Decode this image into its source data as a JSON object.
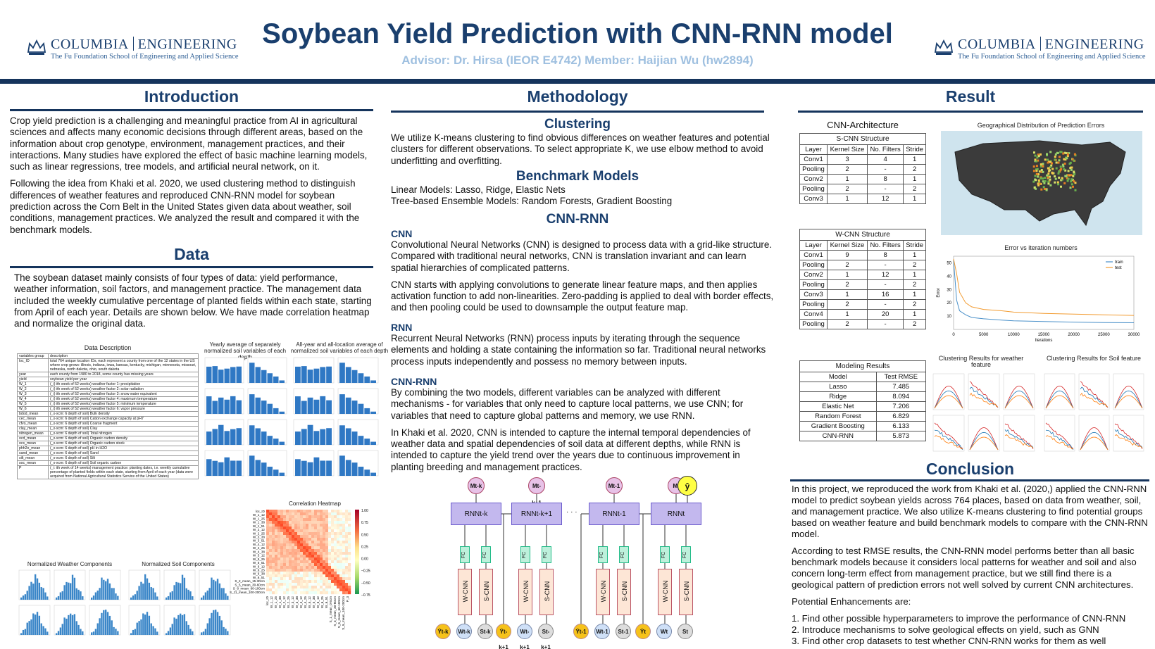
{
  "header": {
    "logo_left": {
      "name1": "COLUMBIA",
      "name2": "ENGINEERING",
      "sub": "The Fu Foundation School of Engineering and Applied Science"
    },
    "logo_right": {
      "name1": "COLUMBIA",
      "name2": "ENGINEERING",
      "sub": "The Fu Foundation School of Engineering and Applied Science"
    },
    "title": "Soybean Yield Prediction with CNN-RNN model",
    "subtitle": "Advisor: Dr. Hirsa (IEOR E4742)  Member: Haijian Wu (hw2894)"
  },
  "introduction": {
    "heading": "Introduction",
    "p1": "Crop yield prediction is a challenging and meaningful practice from AI in agricultural sciences and affects many economic decisions through different areas, based on the information about crop genotype, environment, management practices, and their interactions. Many studies have explored the effect of basic machine learning models, such as linear regressions, tree models, and artificial neural network, on it.",
    "p2": "Following the idea from Khaki et al. 2020, we used clustering method to distinguish differences of weather features and reproduced CNN-RNN model for soybean prediction across the Corn Belt in the United States given data about weather, soil conditions, management practices. We analyzed the result and compared it with the benchmark models."
  },
  "data": {
    "heading": "Data",
    "p1": "The soybean dataset mainly consists of four types of data: yield performance, weather information, soil factors, and management practice. The management data included the weekly cumulative percentage of planted fields within each state, starting from April of each year. Details are shown below. We have made correlation heatmap and normalize the original data.",
    "desc_title": "Data Description",
    "desc_header": [
      "variables group",
      "description"
    ],
    "desc_rows": [
      [
        "loc_ID",
        "total 764 unique location IDs, each represent a county from one of the 12 states in the US where crop grows: illinois, indiana, iowa, kansas, kentucky, michigan, minnesota, missouri, nebraska, north dakota, ohio, south dakota"
      ],
      [
        "year",
        "each county from 1980 to 2018, some county has missing years"
      ],
      [
        "yield",
        "soybean yield per year"
      ],
      [
        "W_1",
        "(_i) ith week of 52 weeks) weather factor 1: precipitation"
      ],
      [
        "W_2",
        "(_i) ith week of 52 weeks) weather factor 2: solar radiation"
      ],
      [
        "W_3",
        "(_i) ith week of 52 weeks) weather factor 3: snow water equivalent"
      ],
      [
        "W_4",
        "(_i) ith week of 52 weeks) weather factor 4: maximum temperature"
      ],
      [
        "W_5",
        "(_i) ith week of 52 weeks) weather factor 5: minimum temperature"
      ],
      [
        "W_6",
        "(_i) ith week of 52 weeks) weather factor 6: vapor pressure"
      ],
      [
        "bdod_mean",
        "(_x-xcm: 6 depth of soil) Bulk density"
      ],
      [
        "cec_mean",
        "(_x-xcm: 6 depth of soil) Cation exchange capacity at pH7"
      ],
      [
        "cfvo_mean",
        "(_x-xcm: 6 depth of soil) Coarse fragment"
      ],
      [
        "clay_mean",
        "(_x-xcm: 6 depth of soil) Clay"
      ],
      [
        "nitrogen_mean",
        "(_x-xcm: 6 depth of soil) Total nitrogen"
      ],
      [
        "ocd_mean",
        "(_x-xcm: 6 depth of soil) Organic carbon density"
      ],
      [
        "ocs_mean",
        "(_x-xcm: 6 depth of soil) Organic carbon stock"
      ],
      [
        "phh2o_mean",
        "(_x-xcm: 6 depth of soil) pH in H2O"
      ],
      [
        "sand_mean",
        "(_x-xcm: 6 depth of soil) Sand"
      ],
      [
        "silt_mean",
        "(_x-xcm: 6 depth of soil) Silt"
      ],
      [
        "soc_mean",
        "(_x-xcm: 6 depth of soil) Soil organic carbon"
      ],
      [
        "P",
        "(_i: ith week of 14 weeks) management practice: planting dates, i.e. weekly cumulative percentage of planted fields within each state, starting from April of each year (data were acquired from National Agricultural Statistics Service of the United States)"
      ]
    ],
    "fig_soil_depth": "Yearly average of separately normalized soil variables of each depth",
    "fig_all_loc": "All-year and all-location average of normalized soil variables of each depth",
    "fig_weather": "Normalized Weather Components",
    "fig_soil": "Normalized Soil Components",
    "fig_heatmap": "Correlation Heatmap",
    "heatmap_ylabels": [
      "loc_ID",
      "W_1_12",
      "W_1_25",
      "W_1_38",
      "W_1_51",
      "W_2_12",
      "W_2_25",
      "W_3_38",
      "W_3_51",
      "W_4_12",
      "W_4_25",
      "W_4_38",
      "W_5_12",
      "W_5_25",
      "W_5_51",
      "W_6_12",
      "W_6_25",
      "W_6_38",
      "W_6_51",
      "S_2_mean_15-30cm",
      "S_5_mean_30-60cm",
      "S_8_mean_60-100cm",
      "S_11_mean_100-200cm"
    ],
    "heatmap_xlabels": [
      "loc_ID",
      "W_1_12",
      "W_1_25",
      "W_1_38",
      "W_2_12",
      "W_2_25",
      "W_3_12",
      "W_3_38",
      "W_4_12",
      "W_4_25",
      "W_5_12",
      "W_5_38",
      "W_6_12",
      "W_6_25",
      "W_6_51",
      "S_1_mean_0-5cm",
      "S_3_mean_30-60cm",
      "S_6_mean_60-100cm",
      "S_9_mean_100-200cm",
      "P_3"
    ],
    "heatmap_ticks": [
      "1.00",
      "0.75",
      "0.50",
      "0.25",
      "0.00",
      "−0.25",
      "−0.50",
      "−0.75"
    ]
  },
  "methodology": {
    "heading": "Methodology",
    "clustering_h": "Clustering",
    "clustering_p": "We utilize K-means clustering to find obvious differences on weather features and potential clusters for different observations. To select appropriate K, we use elbow method to avoid underfitting and overfitting.",
    "bench_h": "Benchmark Models",
    "bench_p1": "Linear Models: Lasso, Ridge, Elastic Nets",
    "bench_p2": "Tree-based Ensemble Models: Random Forests, Gradient Boosting",
    "cnnrnn_h": "CNN-RNN",
    "cnn_h": "CNN",
    "cnn_p1": "Convolutional Neural Networks (CNN) is designed to process data with a grid-like structure. Compared with traditional neural networks, CNN is translation invariant and can learn spatial hierarchies of complicated patterns.",
    "cnn_p2": "CNN starts with applying convolutions to generate linear feature maps, and then applies activation function to add non-linearities. Zero-padding is applied to deal with border effects, and then pooling could be used to downsample the output feature map.",
    "rnn_h": "RNN",
    "rnn_p": "Recurrent Neural Networks (RNN) process inputs by iterating through the sequence elements and holding a state containing the information so far. Traditional neural networks process inputs independently and possess no memory between inputs.",
    "cnnrnn_sub_h": "CNN-RNN",
    "cnnrnn_p1": "By combining the two models, different variables can be analyzed with different mechanisms - for variables that only need to capture local patterns, we use CNN; for variables that need to capture global patterns and memory, we use RNN.",
    "cnnrnn_p2": "In Khaki et al. 2020, CNN is intended to capture the internal temporal dependencies of weather data and spatial dependencies of soil data at different depths, while RNN is intended to capture the yield trend over the years due to continuous improvement in planting breeding and management practices.",
    "diagram": {
      "blocks": [
        {
          "m": "Mt-k",
          "rnn": "RNNt-k",
          "y": "Ȳt-k",
          "w": "Wt-k",
          "s": "St-k"
        },
        {
          "m": "Mt-k+1",
          "rnn": "RNNt-k+1",
          "y": "Ȳt-k+1",
          "w": "Wt-k+1",
          "s": "St-k+1"
        },
        {
          "m": "Mt-1",
          "rnn": "RNNt-1",
          "y": "Ȳt-1",
          "w": "Wt-1",
          "s": "St-1"
        },
        {
          "m": "Mt",
          "rnn": "RNNt",
          "y": "Ȳt",
          "w": "Wt",
          "s": "St"
        }
      ],
      "wcnn": "W-CNN",
      "scnn": "S-CNN",
      "fc": "FC",
      "dots": "· · ·",
      "output": "ŷ"
    }
  },
  "result": {
    "heading": "Result",
    "cnn_arch_title": "CNN-Architecture",
    "scnn": {
      "caption": "S-CNN Structure",
      "header": [
        "Layer",
        "Kernel Size",
        "No. Filters",
        "Stride"
      ],
      "rows": [
        [
          "Conv1",
          "3",
          "4",
          "1"
        ],
        [
          "Pooling",
          "2",
          "-",
          "2"
        ],
        [
          "Conv2",
          "1",
          "8",
          "1"
        ],
        [
          "Pooling",
          "2",
          "-",
          "2"
        ],
        [
          "Conv3",
          "1",
          "12",
          "1"
        ]
      ]
    },
    "wcnn": {
      "caption": "W-CNN Structure",
      "header": [
        "Layer",
        "Kernel Size",
        "No. Filters",
        "Stride"
      ],
      "rows": [
        [
          "Conv1",
          "9",
          "8",
          "1"
        ],
        [
          "Pooling",
          "2",
          "-",
          "2"
        ],
        [
          "Conv2",
          "1",
          "12",
          "1"
        ],
        [
          "Pooling",
          "2",
          "-",
          "2"
        ],
        [
          "Conv3",
          "1",
          "16",
          "1"
        ],
        [
          "Pooling",
          "2",
          "-",
          "2"
        ],
        [
          "Conv4",
          "1",
          "20",
          "1"
        ],
        [
          "Pooling",
          "2",
          "-",
          "2"
        ]
      ]
    },
    "modeling": {
      "caption": "Modeling Results",
      "header": [
        "Model",
        "Test RMSE"
      ],
      "rows": [
        [
          "Lasso",
          "7.485"
        ],
        [
          "Ridge",
          "8.094"
        ],
        [
          "Elastic Net",
          "7.206"
        ],
        [
          "Random Forest",
          "6.829"
        ],
        [
          "Gradient Boosting",
          "6.133"
        ],
        [
          "CNN-RNN",
          "5.873"
        ]
      ]
    },
    "map_title": "Geographical Distribution of Prediction Errors",
    "err_title": "Error vs iteration numbers",
    "err_legend": [
      "train",
      "test"
    ],
    "err_xlabel": "Iterations",
    "err_ylabel": "Error",
    "err_xticks": [
      "0",
      "5000",
      "10000",
      "15000",
      "20000",
      "25000",
      "30000"
    ],
    "err_yticks": [
      "50",
      "40",
      "30",
      "20",
      "10"
    ],
    "clust_w_title": "Clustering Results for weather feature",
    "clust_s_title": "Clustering Results for Soil feature"
  },
  "chart_data": {
    "type": "line",
    "title": "Error vs iteration numbers",
    "xlabel": "Iterations",
    "ylabel": "Error",
    "xlim": [
      0,
      30000
    ],
    "ylim": [
      0,
      55
    ],
    "x": [
      0,
      500,
      1000,
      2000,
      3000,
      5000,
      8000,
      10000,
      15000,
      20000,
      25000,
      30000
    ],
    "series": [
      {
        "name": "train",
        "values": [
          52,
          22,
          14,
          11,
          9,
          8,
          7,
          6.5,
          6,
          5.5,
          5.2,
          5
        ]
      },
      {
        "name": "test",
        "values": [
          53,
          42,
          28,
          20,
          17,
          15,
          14,
          13,
          12,
          11.5,
          11,
          10.5
        ]
      }
    ],
    "legend": "top-right"
  },
  "conclusion": {
    "heading": "Conclusion",
    "p1": "In this project, we reproduced the work from Khaki et al. (2020,) applied the CNN-RNN model to predict soybean yields across 764 places, based on data from weather, soil, and management practice. We also utilize K-means clustering to find potential groups based on weather feature and build benchmark models to compare with the CNN-RNN model.",
    "p2": "According to test RMSE results, the CNN-RNN model performs better than all basic benchmark models because it considers local patterns for weather and soil and also concern long-term effect from management practice, but we still find there is a geological pattern of prediction errors not well solved by current CNN architectures.",
    "p3": "Potential Enhancements are:",
    "items": [
      "1. Find other possible hyperparameters to improve the performance of CNN-RNN",
      "2. Introduce mechanisms to solve geological effects on yield, such as GNN",
      "3. Find other crop datasets to test whether CNN-RNN works for them as well"
    ]
  },
  "colors": {
    "navy": "#1a3f6e",
    "bar": "#15345c",
    "subtitle": "#9fc0e0"
  }
}
